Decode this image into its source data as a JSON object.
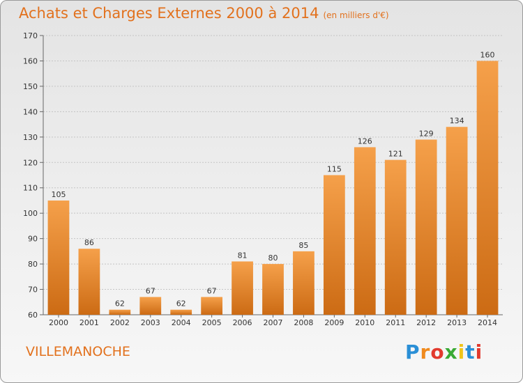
{
  "chart_data": {
    "type": "bar",
    "title": "Achats et Charges Externes 2000 à 2014",
    "subtitle": "(en milliers d'€)",
    "categories": [
      "2000",
      "2001",
      "2002",
      "2003",
      "2004",
      "2005",
      "2006",
      "2007",
      "2008",
      "2009",
      "2010",
      "2011",
      "2012",
      "2013",
      "2014"
    ],
    "values": [
      105,
      86,
      62,
      67,
      62,
      67,
      81,
      80,
      85,
      115,
      126,
      121,
      129,
      134,
      160
    ],
    "ylim": [
      60,
      170
    ],
    "yticks": [
      60,
      70,
      80,
      90,
      100,
      110,
      120,
      130,
      140,
      150,
      160,
      170
    ],
    "grid": true,
    "bar_color": "#e2801f"
  },
  "footer": {
    "commune": "VILLEMANOCHE",
    "logo_text": "Proxiti",
    "logo_colors": [
      "#2a8fd6",
      "#f08a1d",
      "#e23a2e",
      "#3aaa35",
      "#f0c419",
      "#2a8fd6",
      "#e23a2e"
    ]
  }
}
